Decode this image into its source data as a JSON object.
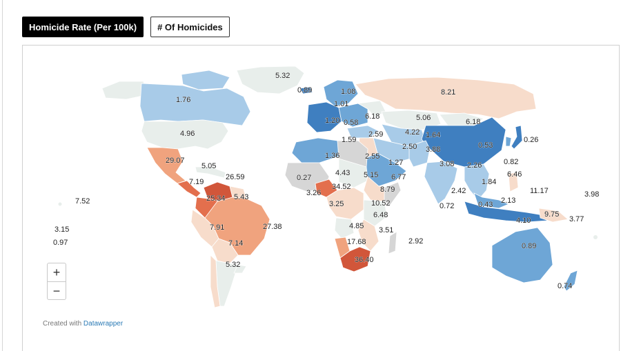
{
  "tabs": [
    {
      "label": "Homicide Rate (Per 100k)",
      "active": true
    },
    {
      "label": "# Of Homicides",
      "active": false
    }
  ],
  "credit": {
    "prefix": "Created with",
    "link": "Datawrapper"
  },
  "zoom": {
    "in_label": "+",
    "out_label": "−"
  },
  "colors": {
    "very_low": "#3f7fc0",
    "low": "#6ea6d6",
    "mid_low": "#a8cbe8",
    "neutral": "#e8eeeb",
    "mid_high": "#f7dccb",
    "high": "#f0a37e",
    "very_high": "#e36f4d",
    "extreme": "#d1563a",
    "no_data": "#d6d6d6"
  },
  "values": [
    "5.32",
    "0.89",
    "1.08",
    "8.21",
    "1.76",
    "1.01",
    "1.20",
    "0.58",
    "6.18",
    "5.06",
    "6.18",
    "4.96",
    "4.22",
    "1.64",
    "1.59",
    "2.59",
    "2.50",
    "0.53",
    "0.26",
    "3.88",
    "1.36",
    "2.55",
    "1.27",
    "3.08",
    "2.26",
    "0.82",
    "29.07",
    "5.05",
    "26.59",
    "7.19",
    "0.27",
    "4.43",
    "5.15",
    "6.77",
    "6.46",
    "34.52",
    "8.79",
    "1.84",
    "11.17",
    "7.52",
    "25.34",
    "5.43",
    "3.26",
    "2.42",
    "3.98",
    "3.25",
    "10.52",
    "0.72",
    "0.43",
    "2.13",
    "6.48",
    "9.75",
    "3.77",
    "27.38",
    "7.91",
    "4.85",
    "3.51",
    "4.10",
    "3.15",
    "0.97",
    "7.14",
    "17.68",
    "2.92",
    "0.89",
    "36.40",
    "5.32",
    "0.74"
  ]
}
